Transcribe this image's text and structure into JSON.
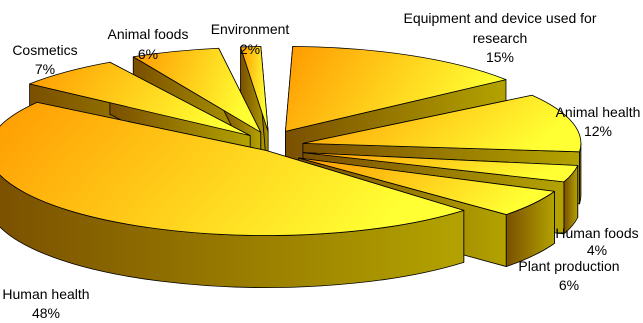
{
  "chart_data": {
    "type": "pie",
    "style": "3d-exploded",
    "title": "",
    "slices": [
      {
        "label": "Equipment and device used for research",
        "value": 15
      },
      {
        "label": "Animal health",
        "value": 12
      },
      {
        "label": "Human foods",
        "value": 4
      },
      {
        "label": "Plant production",
        "value": 6
      },
      {
        "label": "Human health",
        "value": 48
      },
      {
        "label": "Cosmetics",
        "value": 7
      },
      {
        "label": "Animal foods",
        "value": 6
      },
      {
        "label": "Environment",
        "value": 2
      }
    ],
    "colors": {
      "top_light": "#ffff33",
      "top_dark": "#ff9900",
      "side_light": "#b3a300",
      "side_dark": "#7a4f00",
      "outline": "#000000"
    }
  }
}
